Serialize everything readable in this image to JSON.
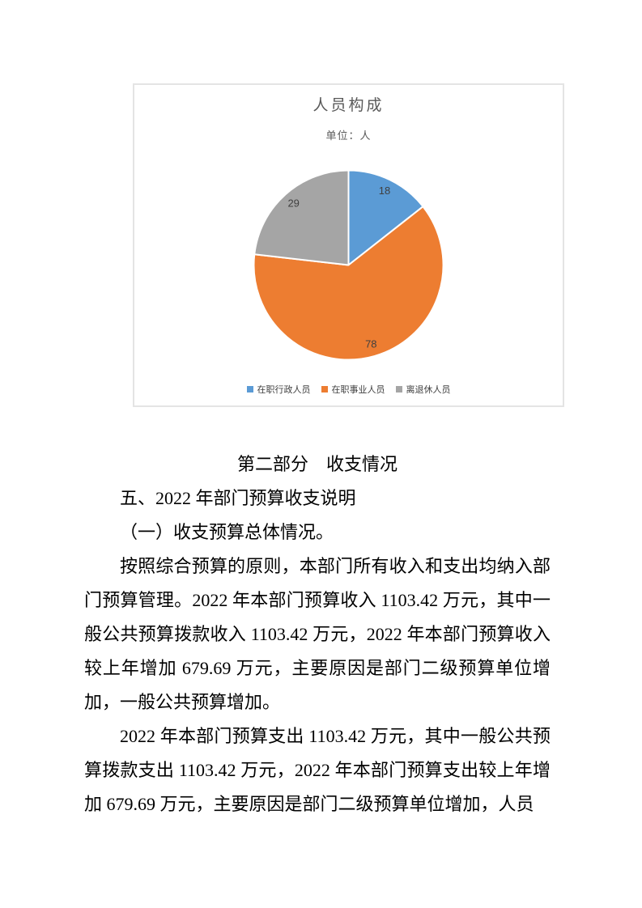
{
  "chart": {
    "title": "人员构成",
    "subtitle": "单位：人"
  },
  "chart_data": {
    "type": "pie",
    "title": "人员构成",
    "subtitle": "单位：人",
    "unit": "人",
    "categories": [
      "在职行政人员",
      "在职事业人员",
      "离退休人员"
    ],
    "values": [
      18,
      78,
      29
    ],
    "colors": [
      "#5B9BD5",
      "#ED7D31",
      "#A5A5A5"
    ],
    "start_angle_deg": 0,
    "direction": "clockwise",
    "data_labels_shown": true,
    "legend_position": "bottom"
  },
  "document": {
    "section_heading": "第二部分　收支情况",
    "sub_heading_1": "五、2022 年部门预算收支说明",
    "sub_heading_2": "（一）收支预算总体情况。",
    "paragraphs": [
      "按照综合预算的原则，本部门所有收入和支出均纳入部门预算管理。2022 年本部门预算收入 1103.42 万元，其中一般公共预算拨款收入 1103.42 万元，2022 年本部门预算收入较上年增加 679.69 万元，主要原因是部门二级预算单位增加，一般公共预算增加。",
      "2022 年本部门预算支出 1103.42 万元，其中一般公共预算拨款支出 1103.42 万元，2022 年本部门预算支出较上年增加 679.69 万元，主要原因是部门二级预算单位增加，人员"
    ]
  }
}
